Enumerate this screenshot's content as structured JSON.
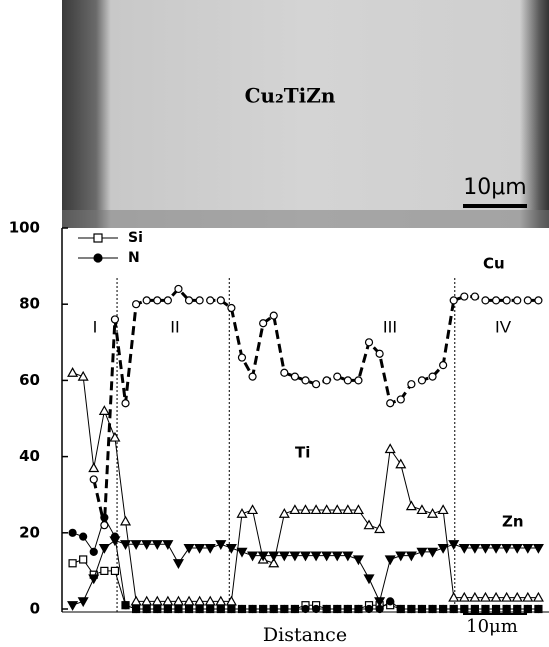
{
  "chart_data": {
    "type": "line",
    "image_title": "Cu₂TiZn",
    "image_scale": "10μm",
    "x_label": "Distance",
    "x_scale": "10μm",
    "xlim": [
      -1,
      45
    ],
    "ylim": [
      0,
      100
    ],
    "yticks": [
      0,
      20,
      40,
      60,
      80,
      100
    ],
    "boundaries": [
      4.2,
      14.8,
      36.1
    ],
    "region_labels": [
      "I",
      "II",
      "III",
      "IV"
    ],
    "legend": "upper left",
    "x": [
      0,
      1,
      2,
      3,
      4,
      5,
      6,
      7,
      8,
      9,
      10,
      11,
      12,
      13,
      14,
      15,
      16,
      17,
      18,
      19,
      20,
      21,
      22,
      23,
      24,
      25,
      26,
      27,
      28,
      29,
      30,
      31,
      32,
      33,
      34,
      35,
      36,
      37,
      38,
      39,
      40,
      41,
      42,
      43,
      44
    ],
    "series": [
      {
        "name": "Si",
        "color": "#000000",
        "marker": "square",
        "filled": false,
        "dash": false,
        "in_legend": true,
        "values": [
          12,
          13,
          9,
          10,
          10,
          1,
          0,
          0,
          0,
          0,
          0,
          0,
          0,
          0,
          0,
          0,
          0,
          0,
          0,
          0,
          0,
          0,
          1,
          1,
          0,
          0,
          0,
          0,
          1,
          1,
          1,
          0,
          0,
          0,
          0,
          0,
          0,
          0,
          0,
          0,
          0,
          0,
          0,
          0,
          0
        ]
      },
      {
        "name": "N",
        "color": "#000000",
        "marker": "circle",
        "filled": true,
        "dash": false,
        "in_legend": true,
        "values": [
          20,
          19,
          15,
          24,
          19,
          1,
          0,
          0,
          0,
          0,
          0,
          0,
          0,
          0,
          0,
          0,
          0,
          0,
          0,
          0,
          0,
          0,
          0,
          0,
          0,
          0,
          0,
          0,
          0,
          0,
          2,
          0,
          0,
          0,
          0,
          0,
          0,
          0,
          0,
          0,
          0,
          0,
          0,
          0,
          0
        ]
      },
      {
        "name": "Cu",
        "color": "#000000",
        "marker": "circle",
        "filled": false,
        "dash": true,
        "in_legend": false,
        "values": [
          null,
          null,
          34,
          22,
          76,
          54,
          80,
          81,
          81,
          81,
          84,
          81,
          81,
          81,
          81,
          79,
          66,
          61,
          75,
          77,
          62,
          61,
          60,
          59,
          60,
          61,
          60,
          60,
          70,
          67,
          54,
          55,
          59,
          60,
          61,
          64,
          81,
          82,
          82,
          81,
          81,
          81,
          81,
          81,
          81
        ]
      },
      {
        "name": "Ti",
        "color": "#000000",
        "marker": "triangle",
        "filled": false,
        "dash": false,
        "in_legend": false,
        "values": [
          62,
          61,
          37,
          52,
          45,
          23,
          2,
          2,
          2,
          2,
          2,
          2,
          2,
          2,
          2,
          2,
          25,
          26,
          13,
          12,
          25,
          26,
          26,
          26,
          26,
          26,
          26,
          26,
          22,
          21,
          42,
          38,
          27,
          26,
          25,
          26,
          3,
          3,
          3,
          3,
          3,
          3,
          3,
          3,
          3
        ]
      },
      {
        "name": "Zn",
        "color": "#000000",
        "marker": "down-triangle",
        "filled": true,
        "dash": false,
        "in_legend": false,
        "values": [
          1,
          2,
          8,
          16,
          18,
          17,
          17,
          17,
          17,
          17,
          12,
          16,
          16,
          16,
          17,
          16,
          15,
          14,
          14,
          14,
          14,
          14,
          14,
          14,
          14,
          14,
          14,
          13,
          8,
          2,
          13,
          14,
          14,
          15,
          15,
          16,
          17,
          16,
          16,
          16,
          16,
          16,
          16,
          16,
          16
        ]
      }
    ]
  }
}
